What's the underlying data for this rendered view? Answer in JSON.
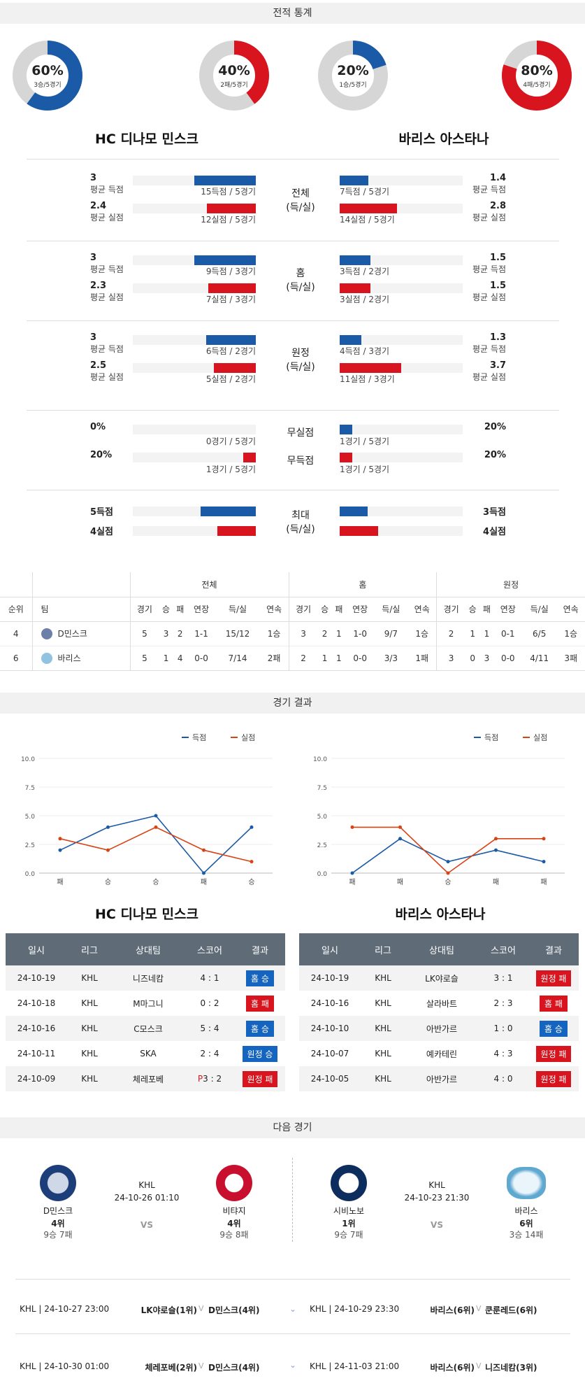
{
  "sections": {
    "stats": "전적 통계",
    "results": "경기 결과",
    "next": "다음 경기"
  },
  "rings": [
    {
      "pct": "60%",
      "rec": "3승/5경기",
      "value": 0.6,
      "color": "#1a5aa6"
    },
    {
      "pct": "40%",
      "rec": "2패/5경기",
      "value": 0.4,
      "color": "#d8141f"
    },
    {
      "pct": "20%",
      "rec": "1승/5경기",
      "value": 0.2,
      "color": "#1a5aa6"
    },
    {
      "pct": "80%",
      "rec": "4패/5경기",
      "value": 0.8,
      "color": "#d8141f"
    }
  ],
  "teams": {
    "home": "HC 디나모 민스크",
    "away": "바리스 아스타나"
  },
  "stat_groups": [
    {
      "center": "전체",
      "center2": "(득/실)",
      "home": [
        {
          "num": "3",
          "label": "평균 득점",
          "sub": "15득점 / 5경기",
          "frac": 1.0,
          "color": "blue"
        },
        {
          "num": "2.4",
          "label": "평균 실점",
          "sub": "12실점 / 5경기",
          "frac": 0.8,
          "color": "red"
        }
      ],
      "away": [
        {
          "num": "1.4",
          "label": "평균 득점",
          "sub": "7득점 / 5경기",
          "frac": 0.47,
          "color": "blue"
        },
        {
          "num": "2.8",
          "label": "평균 실점",
          "sub": "14실점 / 5경기",
          "frac": 0.93,
          "color": "red"
        }
      ]
    },
    {
      "center": "홈",
      "center2": "(득/실)",
      "home": [
        {
          "num": "3",
          "label": "평균 득점",
          "sub": "9득점 / 3경기",
          "frac": 1.0,
          "color": "blue"
        },
        {
          "num": "2.3",
          "label": "평균 실점",
          "sub": "7실점 / 3경기",
          "frac": 0.77,
          "color": "red"
        }
      ],
      "away": [
        {
          "num": "1.5",
          "label": "평균 득점",
          "sub": "3득점 / 2경기",
          "frac": 0.5,
          "color": "blue"
        },
        {
          "num": "1.5",
          "label": "평균 실점",
          "sub": "3실점 / 2경기",
          "frac": 0.5,
          "color": "red"
        }
      ]
    },
    {
      "center": "원정",
      "center2": "(득/실)",
      "home": [
        {
          "num": "3",
          "label": "평균 득점",
          "sub": "6득점 / 2경기",
          "frac": 0.81,
          "color": "blue"
        },
        {
          "num": "2.5",
          "label": "평균 실점",
          "sub": "5실점 / 2경기",
          "frac": 0.68,
          "color": "red"
        }
      ],
      "away": [
        {
          "num": "1.3",
          "label": "평균 득점",
          "sub": "4득점 / 3경기",
          "frac": 0.35,
          "color": "blue"
        },
        {
          "num": "3.7",
          "label": "평균 실점",
          "sub": "11실점 / 3경기",
          "frac": 1.0,
          "color": "red"
        }
      ]
    }
  ],
  "clean": {
    "row1": {
      "center": "무실점",
      "home_num": "0%",
      "home_sub": "0경기 / 5경기",
      "home_frac": 0.0,
      "away_num": "20%",
      "away_sub": "1경기 / 5경기",
      "away_frac": 0.2
    },
    "row2": {
      "center": "무득점",
      "home_num": "20%",
      "home_sub": "1경기 / 5경기",
      "home_frac": 0.2,
      "away_num": "20%",
      "away_sub": "1경기 / 5경기",
      "away_frac": 0.2
    }
  },
  "max": {
    "center": "최대",
    "center2": "(득/실)",
    "home_score": "5득점",
    "home_concede": "4실점",
    "away_score": "3득점",
    "away_concede": "4실점",
    "home_score_frac": 0.5,
    "home_concede_frac": 0.4,
    "away_score_frac": 0.3,
    "away_concede_frac": 0.4
  },
  "standings": {
    "groups": [
      "전체",
      "홈",
      "원정"
    ],
    "headers": [
      "순위",
      "팀",
      "경기",
      "승",
      "패",
      "연장",
      "득/실",
      "연속",
      "경기",
      "승",
      "패",
      "연장",
      "득/실",
      "연속",
      "경기",
      "승",
      "패",
      "연장",
      "득/실",
      "연속"
    ],
    "rows": [
      [
        "4",
        "D민스크",
        "5",
        "3",
        "2",
        "1-1",
        "15/12",
        "1승",
        "3",
        "2",
        "1",
        "1-0",
        "9/7",
        "1승",
        "2",
        "1",
        "1",
        "0-1",
        "6/5",
        "1승"
      ],
      [
        "6",
        "바리스",
        "5",
        "1",
        "4",
        "0-0",
        "7/14",
        "2패",
        "2",
        "1",
        "1",
        "0-0",
        "3/3",
        "1패",
        "3",
        "0",
        "3",
        "0-0",
        "4/11",
        "3패"
      ]
    ]
  },
  "chart_data": [
    {
      "type": "line",
      "categories": [
        "패",
        "승",
        "승",
        "패",
        "승"
      ],
      "series": [
        {
          "name": "득점",
          "values": [
            2,
            4,
            5,
            0,
            4
          ],
          "color": "#1a5aa6"
        },
        {
          "name": "실점",
          "values": [
            3,
            2,
            4,
            2,
            1
          ],
          "color": "#d84315"
        }
      ],
      "ylim": [
        0,
        10
      ],
      "yticks": [
        "0.0",
        "2.5",
        "5.0",
        "7.5",
        "10.0"
      ],
      "legend": "top-right"
    },
    {
      "type": "line",
      "categories": [
        "패",
        "패",
        "승",
        "패",
        "패"
      ],
      "series": [
        {
          "name": "득점",
          "values": [
            0,
            3,
            1,
            2,
            1
          ],
          "color": "#1a5aa6"
        },
        {
          "name": "실점",
          "values": [
            4,
            4,
            0,
            3,
            3
          ],
          "color": "#d84315"
        }
      ],
      "ylim": [
        0,
        10
      ],
      "yticks": [
        "0.0",
        "2.5",
        "5.0",
        "7.5",
        "10.0"
      ],
      "legend": "top-right"
    }
  ],
  "results": {
    "headers": [
      "일시",
      "리그",
      "상대팀",
      "스코어",
      "결과"
    ],
    "home": [
      {
        "date": "24-10-19",
        "league": "KHL",
        "opp": "니즈네캄",
        "score": "4 : 1",
        "res": "홈 승",
        "win": true
      },
      {
        "date": "24-10-18",
        "league": "KHL",
        "opp": "M마그니",
        "score": "0 : 2",
        "res": "홈 패",
        "win": false
      },
      {
        "date": "24-10-16",
        "league": "KHL",
        "opp": "C모스크",
        "score": "5 : 4",
        "res": "홈 승",
        "win": true
      },
      {
        "date": "24-10-11",
        "league": "KHL",
        "opp": "SKA",
        "score": "2 : 4",
        "res": "원정 승",
        "win": true
      },
      {
        "date": "24-10-09",
        "league": "KHL",
        "opp": "체레포베",
        "score_prefix": "P",
        "score": "3 : 2",
        "res": "원정 패",
        "win": false
      }
    ],
    "away": [
      {
        "date": "24-10-19",
        "league": "KHL",
        "opp": "LK야로슬",
        "score": "3 : 1",
        "res": "원정 패",
        "win": false
      },
      {
        "date": "24-10-16",
        "league": "KHL",
        "opp": "살라바트",
        "score": "2 : 3",
        "res": "홈 패",
        "win": false
      },
      {
        "date": "24-10-10",
        "league": "KHL",
        "opp": "아반가르",
        "score": "1 : 0",
        "res": "홈 승",
        "win": true
      },
      {
        "date": "24-10-07",
        "league": "KHL",
        "opp": "예카테린",
        "score": "4 : 3",
        "res": "원정 패",
        "win": false
      },
      {
        "date": "24-10-05",
        "league": "KHL",
        "opp": "아반가르",
        "score": "4 : 0",
        "res": "원정 패",
        "win": false
      }
    ]
  },
  "next": {
    "left": {
      "league": "KHL",
      "datetime": "24-10-26 01:10",
      "vs": "VS",
      "t1": {
        "name": "D민스크",
        "rank": "4위",
        "rec": "9승 7패"
      },
      "t2": {
        "name": "비탸지",
        "rank": "4위",
        "rec": "9승 8패"
      }
    },
    "right": {
      "league": "KHL",
      "datetime": "24-10-23 21:30",
      "vs": "VS",
      "t1": {
        "name": "시비노보",
        "rank": "1위",
        "rec": "9승 7패"
      },
      "t2": {
        "name": "바리스",
        "rank": "6위",
        "rec": "3승 14패"
      }
    },
    "fixtures": [
      {
        "info": "KHL | 24-10-27 23:00",
        "a": "LK야로슬(1위)",
        "b": "D민스크(4위)",
        "info2": "KHL | 24-10-29 23:30",
        "c": "바리스(6위)",
        "d": "쿤룬레드(6위)"
      },
      {
        "info": "KHL | 24-10-30 01:00",
        "a": "체레포베(2위)",
        "b": "D민스크(4위)",
        "info2": "KHL | 24-11-03 21:00",
        "c": "바리스(6위)",
        "d": "니즈네캄(3위)"
      }
    ]
  }
}
